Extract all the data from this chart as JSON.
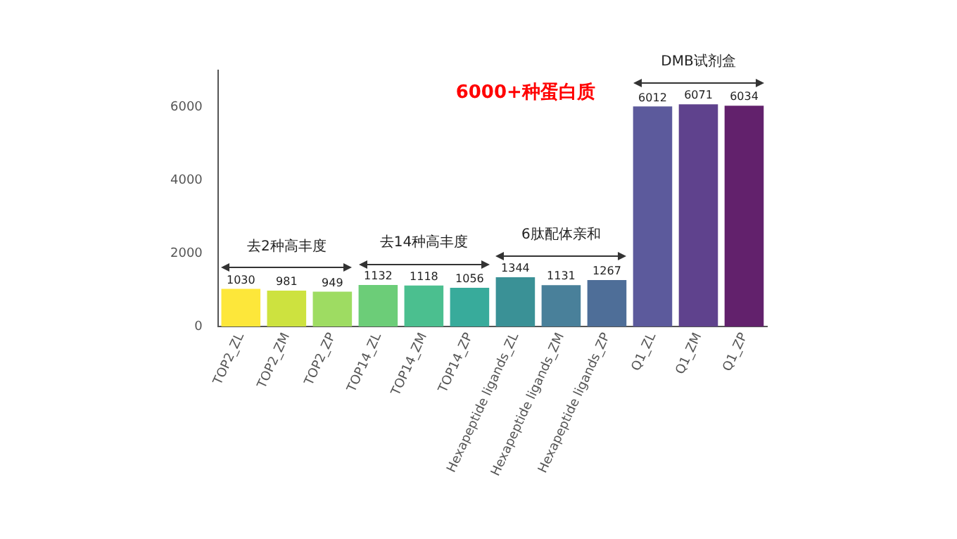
{
  "chart_data": {
    "type": "bar",
    "title": "6000+种蛋白质",
    "categories": [
      "TOP2_ZL",
      "TOP2_ZM",
      "TOP2_ZP",
      "TOP14_ZL",
      "TOP14_ZM",
      "TOP14_ZP",
      "Hexapeptide ligands_ZL",
      "Hexapeptide ligands_ZM",
      "Hexapeptide ligands_ZP",
      "Q1_ZL",
      "Q1_ZM",
      "Q1_ZP"
    ],
    "values": [
      1030,
      981,
      949,
      1132,
      1118,
      1056,
      1344,
      1131,
      1267,
      6012,
      6071,
      6034
    ],
    "colors": [
      "#fde73a",
      "#cde23f",
      "#9edc62",
      "#6ccd78",
      "#4bbf8f",
      "#38ab9b",
      "#3a9196",
      "#49809a",
      "#4e6e98",
      "#5c5a9c",
      "#5f428d",
      "#62216c"
    ],
    "ylim": [
      0,
      7000
    ],
    "yticks": [
      0,
      2000,
      4000,
      6000
    ],
    "grid": false,
    "legend": false,
    "data_labels": true,
    "annotations": [
      "去2种高丰度",
      "去14种高丰度",
      "6肽配体亲和",
      "DMB试剂盒"
    ]
  }
}
